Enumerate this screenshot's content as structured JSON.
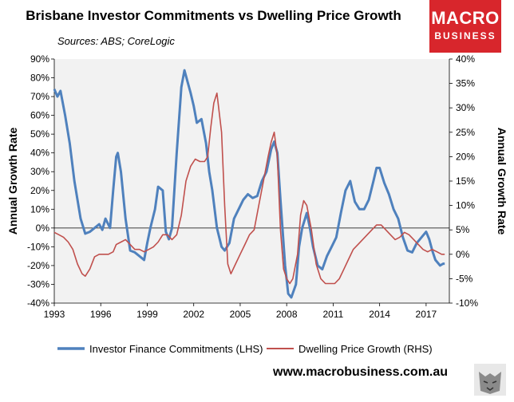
{
  "title": "Brisbane Investor Commitments vs Dwelling Price Growth",
  "subtitle": "Sources: ABS; CoreLogic",
  "logo": {
    "line1": "MACRO",
    "line2": "BUSINESS"
  },
  "footer_url": "www.macrobusiness.com.au",
  "colors": {
    "investor": "#4f81bd",
    "price": "#c0504d",
    "plot_bg": "#f2f2f2"
  },
  "chart_data": {
    "type": "line",
    "ylabel": "Annual Growth Rate",
    "y2label": "Annual Growth Rate",
    "xlim": [
      1993.0,
      2018.5
    ],
    "ylim": [
      -40,
      90
    ],
    "y2lim": [
      -10,
      40
    ],
    "xticks": [
      1993,
      1996,
      1999,
      2002,
      2005,
      2008,
      2011,
      2014,
      2017
    ],
    "yticks": [
      -40,
      -30,
      -20,
      -10,
      0,
      10,
      20,
      30,
      40,
      50,
      60,
      70,
      80,
      90
    ],
    "y2ticks": [
      -10,
      -5,
      0,
      5,
      10,
      15,
      20,
      25,
      30,
      35,
      40
    ],
    "ytick_labels": [
      "-40%",
      "-30%",
      "-20%",
      "-10%",
      "0%",
      "10%",
      "20%",
      "30%",
      "40%",
      "50%",
      "60%",
      "70%",
      "80%",
      "90%"
    ],
    "y2tick_labels": [
      "-10%",
      "-5%",
      "0%",
      "5%",
      "10%",
      "15%",
      "20%",
      "25%",
      "30%",
      "35%",
      "40%"
    ],
    "legend_position": "bottom",
    "grid": false,
    "series": [
      {
        "name": "Investor Finance Commitments (LHS)",
        "axis": "left",
        "x": [
          1993.0,
          1993.2,
          1993.4,
          1993.7,
          1994.0,
          1994.3,
          1994.7,
          1995.0,
          1995.3,
          1995.6,
          1995.9,
          1996.1,
          1996.3,
          1996.6,
          1996.8,
          1997.0,
          1997.1,
          1997.3,
          1997.6,
          1997.9,
          1998.2,
          1998.5,
          1998.8,
          1999.0,
          1999.2,
          1999.5,
          1999.7,
          2000.0,
          2000.2,
          2000.4,
          2000.6,
          2000.9,
          2001.2,
          2001.4,
          2001.6,
          2001.8,
          2002.0,
          2002.2,
          2002.5,
          2002.8,
          2003.0,
          2003.2,
          2003.5,
          2003.8,
          2004.0,
          2004.3,
          2004.6,
          2004.9,
          2005.2,
          2005.5,
          2005.8,
          2006.1,
          2006.4,
          2006.7,
          2007.0,
          2007.2,
          2007.4,
          2007.6,
          2007.9,
          2008.1,
          2008.3,
          2008.6,
          2008.8,
          2009.0,
          2009.3,
          2009.5,
          2009.7,
          2010.0,
          2010.3,
          2010.6,
          2010.9,
          2011.2,
          2011.5,
          2011.8,
          2012.1,
          2012.4,
          2012.7,
          2013.0,
          2013.3,
          2013.6,
          2013.8,
          2014.0,
          2014.3,
          2014.6,
          2014.9,
          2015.2,
          2015.5,
          2015.8,
          2016.1,
          2016.4,
          2016.7,
          2017.0,
          2017.2,
          2017.4,
          2017.6,
          2017.9,
          2018.1,
          2018.2
        ],
        "y": [
          74,
          70,
          73,
          60,
          45,
          25,
          5,
          -3,
          -2,
          0,
          2,
          -1,
          5,
          0,
          20,
          38,
          40,
          30,
          5,
          -12,
          -13,
          -15,
          -17,
          -8,
          0,
          10,
          22,
          20,
          -2,
          -6,
          0,
          40,
          75,
          84,
          78,
          72,
          65,
          56,
          58,
          45,
          30,
          20,
          0,
          -10,
          -12,
          -8,
          5,
          10,
          15,
          18,
          16,
          17,
          25,
          30,
          42,
          46,
          40,
          15,
          -20,
          -35,
          -37,
          -30,
          -10,
          0,
          8,
          0,
          -10,
          -20,
          -22,
          -15,
          -10,
          -5,
          8,
          20,
          25,
          14,
          10,
          10,
          15,
          25,
          32,
          32,
          24,
          18,
          10,
          5,
          -5,
          -12,
          -13,
          -8,
          -5,
          -2,
          -6,
          -12,
          -17,
          -20,
          -19,
          -19
        ]
      },
      {
        "name": "Dwelling Price Growth (RHS)",
        "axis": "right",
        "x": [
          1993.0,
          1993.3,
          1993.6,
          1993.9,
          1994.2,
          1994.5,
          1994.8,
          1995.0,
          1995.3,
          1995.6,
          1995.9,
          1996.2,
          1996.5,
          1996.8,
          1997.0,
          1997.3,
          1997.6,
          1997.9,
          1998.2,
          1998.5,
          1998.8,
          1999.1,
          1999.4,
          1999.7,
          2000.0,
          2000.3,
          2000.6,
          2000.9,
          2001.2,
          2001.5,
          2001.8,
          2002.1,
          2002.4,
          2002.7,
          2002.9,
          2003.1,
          2003.3,
          2003.5,
          2003.8,
          2004.0,
          2004.2,
          2004.4,
          2004.7,
          2005.0,
          2005.3,
          2005.6,
          2005.9,
          2006.2,
          2006.5,
          2006.8,
          2007.0,
          2007.2,
          2007.4,
          2007.6,
          2007.8,
          2008.0,
          2008.2,
          2008.4,
          2008.7,
          2008.9,
          2009.1,
          2009.3,
          2009.6,
          2009.9,
          2010.2,
          2010.5,
          2010.8,
          2011.1,
          2011.4,
          2011.7,
          2012.0,
          2012.3,
          2012.6,
          2012.9,
          2013.2,
          2013.5,
          2013.8,
          2014.1,
          2014.4,
          2014.7,
          2015.0,
          2015.3,
          2015.6,
          2015.9,
          2016.2,
          2016.5,
          2016.8,
          2017.1,
          2017.4,
          2017.7,
          2018.0,
          2018.2
        ],
        "y": [
          4.5,
          4,
          3.5,
          2.5,
          1,
          -2,
          -4,
          -4.5,
          -3,
          -0.5,
          0,
          0,
          0,
          0.5,
          2,
          2.5,
          3,
          2,
          1,
          1,
          0.5,
          1,
          1.5,
          2.5,
          4,
          4,
          3,
          4,
          8,
          15,
          18,
          19.5,
          19,
          19,
          20,
          26,
          31,
          33,
          25,
          10,
          -2,
          -4,
          -2,
          0,
          2,
          4,
          5,
          10,
          15,
          20,
          23,
          25,
          20,
          5,
          -3,
          -5,
          -6,
          -5,
          0,
          8,
          11,
          10,
          5,
          -2,
          -5,
          -6,
          -6,
          -6,
          -5,
          -3,
          -1,
          1,
          2,
          3,
          4,
          5,
          6,
          6,
          5,
          4,
          3,
          3.5,
          4.5,
          4,
          3,
          2,
          1,
          0.5,
          1,
          0.5,
          0,
          0
        ]
      }
    ]
  }
}
